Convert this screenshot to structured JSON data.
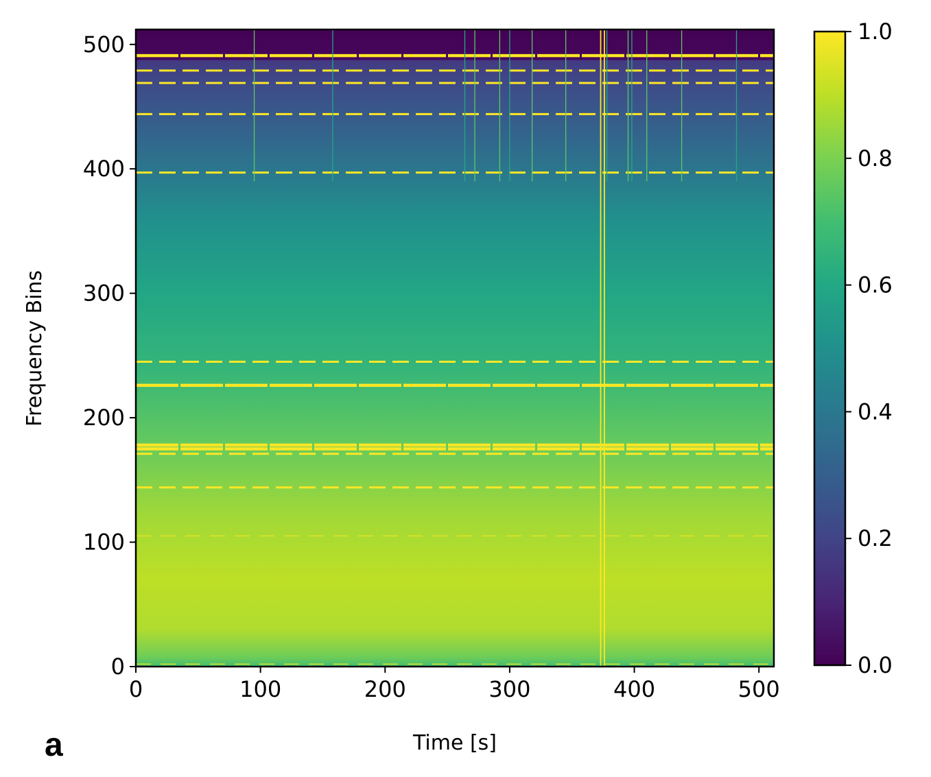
{
  "panel_label": "a",
  "chart_data": {
    "type": "heatmap",
    "xlabel": "Time [s]",
    "ylabel": "Frequency Bins",
    "xlim": [
      0,
      512
    ],
    "ylim": [
      0,
      512
    ],
    "x_ticks": [
      0,
      100,
      200,
      300,
      400,
      500
    ],
    "y_ticks": [
      0,
      100,
      200,
      300,
      400,
      500
    ],
    "colormap": "viridis",
    "colorbar": {
      "range": [
        0.0,
        1.0
      ],
      "ticks": [
        "0.0",
        "0.2",
        "0.4",
        "0.6",
        "0.8",
        "1.0"
      ]
    },
    "background_profile": [
      {
        "bin": 0,
        "value": 0.7
      },
      {
        "bin": 8,
        "value": 0.78
      },
      {
        "bin": 30,
        "value": 0.88
      },
      {
        "bin": 70,
        "value": 0.9
      },
      {
        "bin": 120,
        "value": 0.86
      },
      {
        "bin": 180,
        "value": 0.76
      },
      {
        "bin": 240,
        "value": 0.66
      },
      {
        "bin": 300,
        "value": 0.59
      },
      {
        "bin": 360,
        "value": 0.5
      },
      {
        "bin": 420,
        "value": 0.34
      },
      {
        "bin": 470,
        "value": 0.22
      },
      {
        "bin": 487,
        "value": 0.17
      },
      {
        "bin": 488,
        "value": 0.02
      },
      {
        "bin": 512,
        "value": 0.0
      }
    ],
    "horizontal_lines": [
      {
        "bin": 491,
        "value": 1.0,
        "style": "solid-broken"
      },
      {
        "bin": 479,
        "value": 1.0,
        "style": "dashed"
      },
      {
        "bin": 469,
        "value": 1.0,
        "style": "dashed"
      },
      {
        "bin": 444,
        "value": 1.0,
        "style": "dashed"
      },
      {
        "bin": 397,
        "value": 1.0,
        "style": "dashed"
      },
      {
        "bin": 245,
        "value": 1.0,
        "style": "dashed"
      },
      {
        "bin": 226,
        "value": 1.0,
        "style": "solid-broken"
      },
      {
        "bin": 178,
        "value": 1.0,
        "style": "solid-broken"
      },
      {
        "bin": 175,
        "value": 1.0,
        "style": "solid-broken"
      },
      {
        "bin": 171,
        "value": 1.0,
        "style": "dashed"
      },
      {
        "bin": 144,
        "value": 1.0,
        "style": "dashed"
      },
      {
        "bin": 105,
        "value": 0.95,
        "style": "dashed-thin"
      },
      {
        "bin": 2,
        "value": 0.95,
        "style": "dashed-thin"
      }
    ],
    "vertical_lines": [
      {
        "time": 95,
        "from_bin": 390,
        "to_bin": 512,
        "value": 0.75
      },
      {
        "time": 158,
        "from_bin": 390,
        "to_bin": 512,
        "value": 0.6
      },
      {
        "time": 264,
        "from_bin": 390,
        "to_bin": 512,
        "value": 0.6
      },
      {
        "time": 272,
        "from_bin": 390,
        "to_bin": 512,
        "value": 0.75
      },
      {
        "time": 292,
        "from_bin": 390,
        "to_bin": 512,
        "value": 0.75
      },
      {
        "time": 300,
        "from_bin": 390,
        "to_bin": 512,
        "value": 0.6
      },
      {
        "time": 318,
        "from_bin": 390,
        "to_bin": 512,
        "value": 0.75
      },
      {
        "time": 345,
        "from_bin": 390,
        "to_bin": 512,
        "value": 0.75
      },
      {
        "time": 373,
        "from_bin": 0,
        "to_bin": 512,
        "value": 1.0
      },
      {
        "time": 376,
        "from_bin": 0,
        "to_bin": 512,
        "value": 1.0
      },
      {
        "time": 378,
        "from_bin": 390,
        "to_bin": 512,
        "value": 0.6
      },
      {
        "time": 395,
        "from_bin": 390,
        "to_bin": 512,
        "value": 0.75
      },
      {
        "time": 398,
        "from_bin": 390,
        "to_bin": 512,
        "value": 0.6
      },
      {
        "time": 410,
        "from_bin": 390,
        "to_bin": 512,
        "value": 0.75
      },
      {
        "time": 438,
        "from_bin": 390,
        "to_bin": 512,
        "value": 0.75
      },
      {
        "time": 482,
        "from_bin": 390,
        "to_bin": 512,
        "value": 0.6
      }
    ],
    "colors": {
      "viridis_stops": [
        "#440154",
        "#482475",
        "#414487",
        "#355f8d",
        "#2a788e",
        "#21908d",
        "#22a884",
        "#42be71",
        "#7ad151",
        "#bddf26",
        "#fde725"
      ],
      "axes": "#000000"
    }
  }
}
